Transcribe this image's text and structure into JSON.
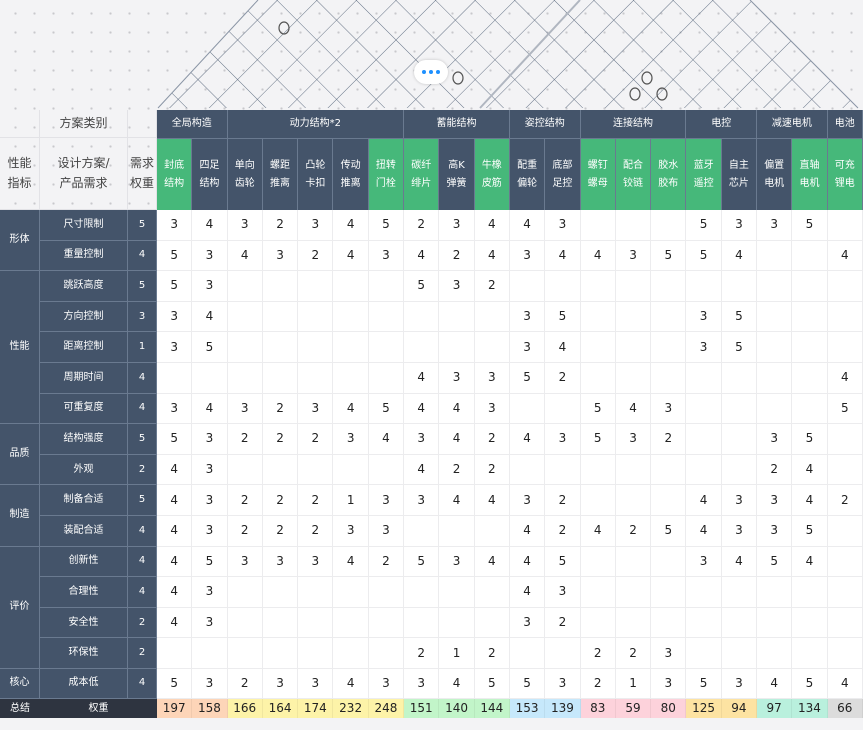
{
  "header": {
    "corner_top": "方案类别",
    "col1": "性能\n指标",
    "col2": "设计方案/\n产品需求",
    "col3": "需求\n权重"
  },
  "groups": [
    {
      "label": "全局构造",
      "span": 2
    },
    {
      "label": "动力结构*2",
      "span": 5
    },
    {
      "label": "蓄能结构",
      "span": 3
    },
    {
      "label": "姿控结构",
      "span": 2
    },
    {
      "label": "连接结构",
      "span": 3
    },
    {
      "label": "电控",
      "span": 2
    },
    {
      "label": "减速电机",
      "span": 2
    },
    {
      "label": "电池",
      "span": 1
    }
  ],
  "schemes": [
    {
      "label": "封底\n结构",
      "highlight": true
    },
    {
      "label": "四足\n结构",
      "highlight": false
    },
    {
      "label": "单向\n齿轮",
      "highlight": false
    },
    {
      "label": "螺距\n推离",
      "highlight": false
    },
    {
      "label": "凸轮\n卡扣",
      "highlight": false
    },
    {
      "label": "传动\n推离",
      "highlight": false
    },
    {
      "label": "扭转\n门栓",
      "highlight": true
    },
    {
      "label": "碳纤\n绯片",
      "highlight": true
    },
    {
      "label": "高K\n弹簧",
      "highlight": false
    },
    {
      "label": "牛橡\n皮筋",
      "highlight": true
    },
    {
      "label": "配重\n偏轮",
      "highlight": false
    },
    {
      "label": "底部\n足控",
      "highlight": false
    },
    {
      "label": "螺钉\n螺母",
      "highlight": true
    },
    {
      "label": "配合\n铰链",
      "highlight": true
    },
    {
      "label": "胶水\n胶布",
      "highlight": true
    },
    {
      "label": "蓝牙\n遥控",
      "highlight": true
    },
    {
      "label": "自主\n芯片",
      "highlight": false
    },
    {
      "label": "偏置\n电机",
      "highlight": false
    },
    {
      "label": "直轴\n电机",
      "highlight": true
    },
    {
      "label": "可充\n锂电",
      "highlight": true
    }
  ],
  "categories": [
    {
      "label": "形体",
      "rows": [
        {
          "name": "尺寸限制",
          "weight": "5",
          "values": [
            "3",
            "4",
            "3",
            "2",
            "3",
            "4",
            "5",
            "2",
            "3",
            "4",
            "4",
            "3",
            "",
            "",
            "",
            "5",
            "3",
            "3",
            "5",
            ""
          ]
        },
        {
          "name": "重量控制",
          "weight": "4",
          "values": [
            "5",
            "3",
            "4",
            "3",
            "2",
            "4",
            "3",
            "4",
            "2",
            "4",
            "3",
            "4",
            "4",
            "3",
            "5",
            "5",
            "4",
            "",
            "",
            "4"
          ]
        }
      ]
    },
    {
      "label": "性能",
      "rows": [
        {
          "name": "跳跃高度",
          "weight": "5",
          "values": [
            "5",
            "3",
            "",
            "",
            "",
            "",
            "",
            "5",
            "3",
            "2",
            "",
            "",
            "",
            "",
            "",
            "",
            "",
            "",
            "",
            ""
          ]
        },
        {
          "name": "方向控制",
          "weight": "3",
          "values": [
            "3",
            "4",
            "",
            "",
            "",
            "",
            "",
            "",
            "",
            "",
            "3",
            "5",
            "",
            "",
            "",
            "3",
            "5",
            "",
            "",
            ""
          ]
        },
        {
          "name": "距离控制",
          "weight": "1",
          "values": [
            "3",
            "5",
            "",
            "",
            "",
            "",
            "",
            "",
            "",
            "",
            "3",
            "4",
            "",
            "",
            "",
            "3",
            "5",
            "",
            "",
            ""
          ]
        },
        {
          "name": "周期时间",
          "weight": "4",
          "values": [
            "",
            "",
            "",
            "",
            "",
            "",
            "",
            "4",
            "3",
            "3",
            "5",
            "2",
            "",
            "",
            "",
            "",
            "",
            "",
            "",
            "4"
          ]
        },
        {
          "name": "可重复度",
          "weight": "4",
          "values": [
            "3",
            "4",
            "3",
            "2",
            "3",
            "4",
            "5",
            "4",
            "4",
            "3",
            "",
            "",
            "5",
            "4",
            "3",
            "",
            "",
            "",
            "",
            "5"
          ]
        }
      ]
    },
    {
      "label": "品质",
      "rows": [
        {
          "name": "结构强度",
          "weight": "5",
          "values": [
            "5",
            "3",
            "2",
            "2",
            "2",
            "3",
            "4",
            "3",
            "4",
            "2",
            "4",
            "3",
            "5",
            "3",
            "2",
            "",
            "",
            "3",
            "5",
            ""
          ]
        },
        {
          "name": "外观",
          "weight": "2",
          "values": [
            "4",
            "3",
            "",
            "",
            "",
            "",
            "",
            "4",
            "2",
            "2",
            "",
            "",
            "",
            "",
            "",
            "",
            "",
            "2",
            "4",
            ""
          ]
        }
      ]
    },
    {
      "label": "制造",
      "rows": [
        {
          "name": "制备合适",
          "weight": "5",
          "values": [
            "4",
            "3",
            "2",
            "2",
            "2",
            "1",
            "3",
            "3",
            "4",
            "4",
            "3",
            "2",
            "",
            "",
            "",
            "4",
            "3",
            "3",
            "4",
            "2"
          ]
        },
        {
          "name": "装配合适",
          "weight": "4",
          "values": [
            "4",
            "3",
            "2",
            "2",
            "2",
            "3",
            "3",
            "",
            "",
            "",
            "4",
            "2",
            "4",
            "2",
            "5",
            "4",
            "3",
            "3",
            "5",
            ""
          ]
        }
      ]
    },
    {
      "label": "评价",
      "rows": [
        {
          "name": "创新性",
          "weight": "4",
          "values": [
            "4",
            "5",
            "3",
            "3",
            "3",
            "4",
            "2",
            "5",
            "3",
            "4",
            "4",
            "5",
            "",
            "",
            "",
            "3",
            "4",
            "5",
            "4",
            ""
          ]
        },
        {
          "name": "合理性",
          "weight": "4",
          "values": [
            "4",
            "3",
            "",
            "",
            "",
            "",
            "",
            "",
            "",
            "",
            "4",
            "3",
            "",
            "",
            "",
            "",
            "",
            "",
            "",
            ""
          ]
        },
        {
          "name": "安全性",
          "weight": "2",
          "values": [
            "4",
            "3",
            "",
            "",
            "",
            "",
            "",
            "",
            "",
            "",
            "3",
            "2",
            "",
            "",
            "",
            "",
            "",
            "",
            "",
            ""
          ]
        },
        {
          "name": "环保性",
          "weight": "2",
          "values": [
            "",
            "",
            "",
            "",
            "",
            "",
            "",
            "2",
            "1",
            "2",
            "",
            "",
            "2",
            "2",
            "3",
            "",
            "",
            "",
            "",
            ""
          ]
        }
      ]
    },
    {
      "label": "核心",
      "rows": [
        {
          "name": "成本低",
          "weight": "4",
          "values": [
            "5",
            "3",
            "2",
            "3",
            "3",
            "4",
            "3",
            "3",
            "4",
            "5",
            "5",
            "3",
            "2",
            "1",
            "3",
            "5",
            "3",
            "4",
            "5",
            "4"
          ]
        }
      ]
    }
  ],
  "summary": {
    "label": "总结",
    "sublabel": "权重",
    "totals": [
      "197",
      "158",
      "166",
      "164",
      "174",
      "232",
      "248",
      "151",
      "140",
      "144",
      "153",
      "139",
      "83",
      "59",
      "80",
      "125",
      "94",
      "97",
      "134",
      "66"
    ],
    "group_colors": [
      "#fdd5b8",
      "#fdf3a8",
      "#c2f5c9",
      "#c6e8fb",
      "#fdd2db",
      "#fde3a2",
      "#b9f0dd",
      "#dcdcdc"
    ]
  },
  "colors": {
    "dark": "#44546a",
    "green": "#46b87a"
  }
}
